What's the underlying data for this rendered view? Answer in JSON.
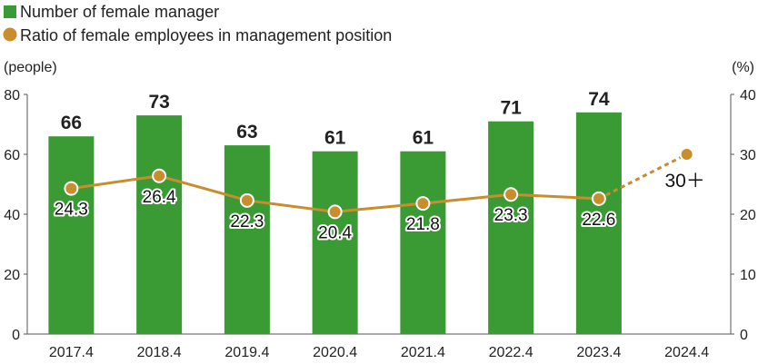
{
  "legend": {
    "bars": "Number of female manager",
    "line": "Ratio of female employees in management position"
  },
  "axes": {
    "left_unit": "(people)",
    "right_unit": "(%)"
  },
  "colors": {
    "bar": "#3a9b35",
    "line": "#c98d2e",
    "axis": "#555555"
  },
  "chart_data": {
    "type": "bar",
    "categories": [
      "2017.4",
      "2018.4",
      "2019.4",
      "2020.4",
      "2021.4",
      "2022.4",
      "2023.4",
      "2024.4"
    ],
    "series": [
      {
        "name": "Number of female manager",
        "type": "bar",
        "axis": "left",
        "values": [
          66,
          73,
          63,
          61,
          61,
          71,
          74,
          null
        ]
      },
      {
        "name": "Ratio of female employees in management position",
        "type": "line",
        "axis": "right",
        "values": [
          24.3,
          26.4,
          22.3,
          20.4,
          21.8,
          23.3,
          22.6,
          30
        ],
        "labels": [
          "24.3",
          "26.4",
          "22.3",
          "20.4",
          "21.8",
          "23.3",
          "22.6",
          "30＋"
        ],
        "dashed_from_index": 6
      }
    ],
    "ylabel_left": "(people)",
    "ylabel_right": "(%)",
    "ylim_left": [
      0,
      80
    ],
    "yticks_left": [
      "0",
      "20",
      "40",
      "60",
      "80"
    ],
    "ylim_right": [
      0,
      40
    ],
    "yticks_right": [
      "0",
      "10",
      "20",
      "30",
      "40"
    ],
    "legend_position": "top-left",
    "grid": false
  }
}
